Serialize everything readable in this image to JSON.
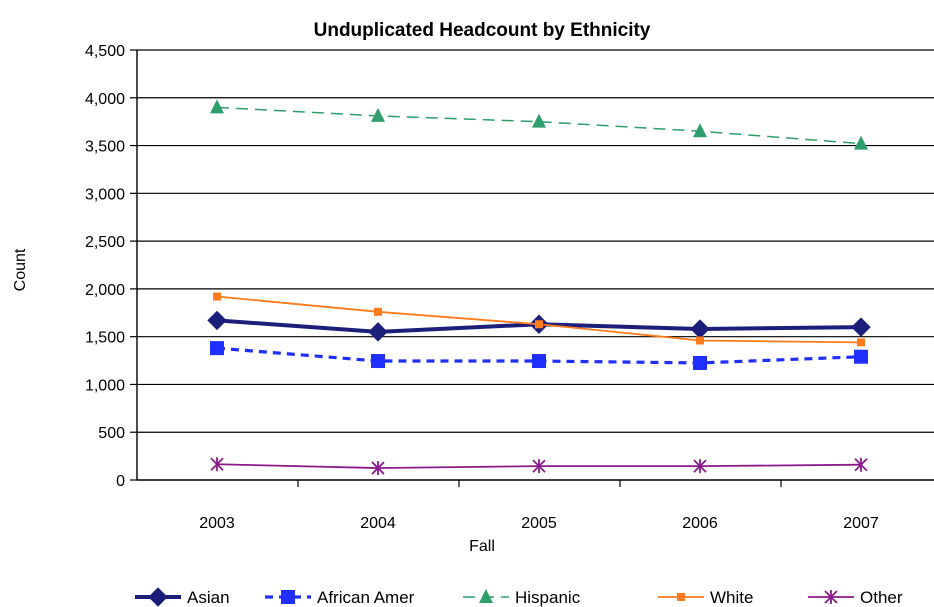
{
  "chart_data": {
    "type": "line",
    "title": "Unduplicated Headcount by Ethnicity",
    "xlabel": "Fall",
    "ylabel": "Count",
    "categories": [
      "2003",
      "2004",
      "2005",
      "2006",
      "2007"
    ],
    "ylim": [
      0,
      4500
    ],
    "ytick_labels": [
      "0",
      "500",
      "1,000",
      "1,500",
      "2,000",
      "2,500",
      "3,000",
      "3,500",
      "4,000",
      "4,500"
    ],
    "grid": "horizontal",
    "legend_position": "bottom",
    "series": [
      {
        "name": "Asian",
        "values": [
          1670,
          1550,
          1630,
          1580,
          1600
        ],
        "color": "#1b1f7a",
        "marker": "diamond",
        "dash": "solid"
      },
      {
        "name": "African Amer",
        "values": [
          1380,
          1245,
          1245,
          1225,
          1290
        ],
        "color": "#1f2fff",
        "marker": "square",
        "dash": "dashed"
      },
      {
        "name": "Hispanic",
        "values": [
          3900,
          3810,
          3750,
          3650,
          3520
        ],
        "color": "#2e9e6a",
        "marker": "triangle",
        "dash": "longdash"
      },
      {
        "name": "White",
        "values": [
          1920,
          1760,
          1630,
          1460,
          1440
        ],
        "color": "#ff7a1a",
        "marker": "small-square",
        "dash": "solid"
      },
      {
        "name": "Other",
        "values": [
          165,
          125,
          145,
          145,
          160
        ],
        "color": "#8b1a8b",
        "marker": "asterisk",
        "dash": "solid"
      }
    ]
  }
}
